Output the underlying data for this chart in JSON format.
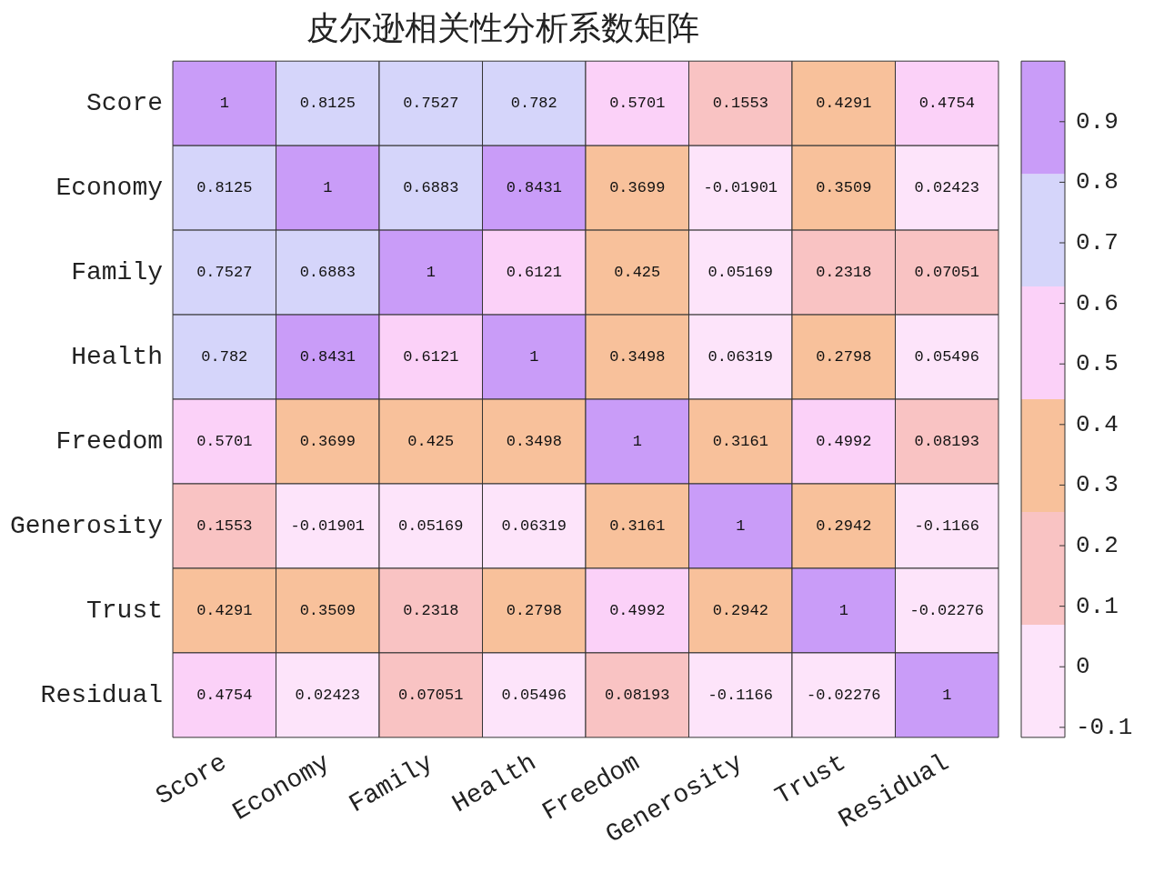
{
  "chart_data": {
    "type": "heatmap",
    "title": "皮尔逊相关性分析系数矩阵",
    "categories": [
      "Score",
      "Economy",
      "Family",
      "Health",
      "Freedom",
      "Generosity",
      "Trust",
      "Residual"
    ],
    "y_categories": [
      "Score",
      "Economy",
      "Family",
      "Health",
      "Freedom",
      "Generosity",
      "Trust",
      "Residual"
    ],
    "cells": [
      [
        1,
        0.8125,
        0.7527,
        0.782,
        0.5701,
        0.1553,
        0.4291,
        0.4754
      ],
      [
        0.8125,
        1,
        0.6883,
        0.8431,
        0.3699,
        -0.01901,
        0.3509,
        0.02423
      ],
      [
        0.7527,
        0.6883,
        1,
        0.6121,
        0.425,
        0.05169,
        0.2318,
        0.07051
      ],
      [
        0.782,
        0.8431,
        0.6121,
        1,
        0.3498,
        0.06319,
        0.2798,
        0.05496
      ],
      [
        0.5701,
        0.3699,
        0.425,
        0.3498,
        1,
        0.3161,
        0.4992,
        0.08193
      ],
      [
        0.1553,
        -0.01901,
        0.05169,
        0.06319,
        0.3161,
        1,
        0.2942,
        -0.1166
      ],
      [
        0.4291,
        0.3509,
        0.2318,
        0.2798,
        0.4992,
        0.2942,
        1,
        -0.02276
      ],
      [
        0.4754,
        0.02423,
        0.07051,
        0.05496,
        0.08193,
        -0.1166,
        -0.02276,
        1
      ]
    ],
    "clim": [
      -0.1166,
      1
    ],
    "cticks": [
      -0.1,
      0,
      0.1,
      0.2,
      0.3,
      0.4,
      0.5,
      0.6,
      0.7,
      0.8,
      0.9
    ],
    "colors": [
      "#fde4fa",
      "#f9c3c3",
      "#f8c19b",
      "#fbd1f8",
      "#d5d5fa",
      "#c99cf8"
    ],
    "data_labels": true
  }
}
